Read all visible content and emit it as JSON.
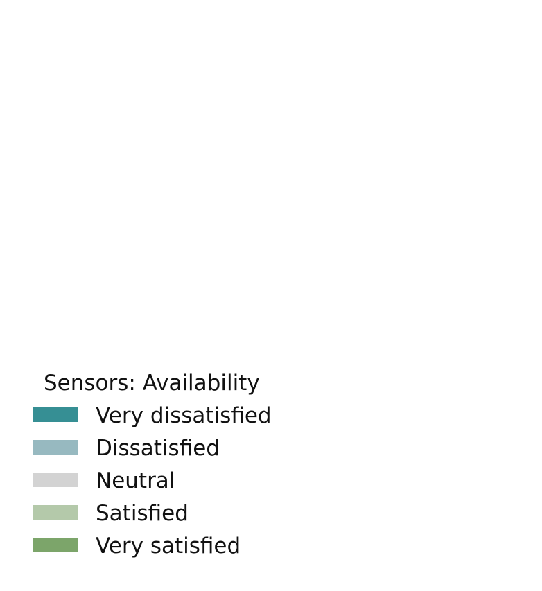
{
  "chart_data": {
    "type": "bar",
    "categories": [],
    "series": [],
    "legend": {
      "title": "Sensors: Availability",
      "placement": "bottom-left",
      "items": [
        {
          "label": "Very dissatisfied",
          "color": "#368f94"
        },
        {
          "label": "Dissatisfied",
          "color": "#97b9c0"
        },
        {
          "label": "Neutral",
          "color": "#d3d3d3"
        },
        {
          "label": "Satisfied",
          "color": "#b4c9aa"
        },
        {
          "label": "Very satisfied",
          "color": "#7ca56a"
        }
      ]
    },
    "grid": false
  }
}
